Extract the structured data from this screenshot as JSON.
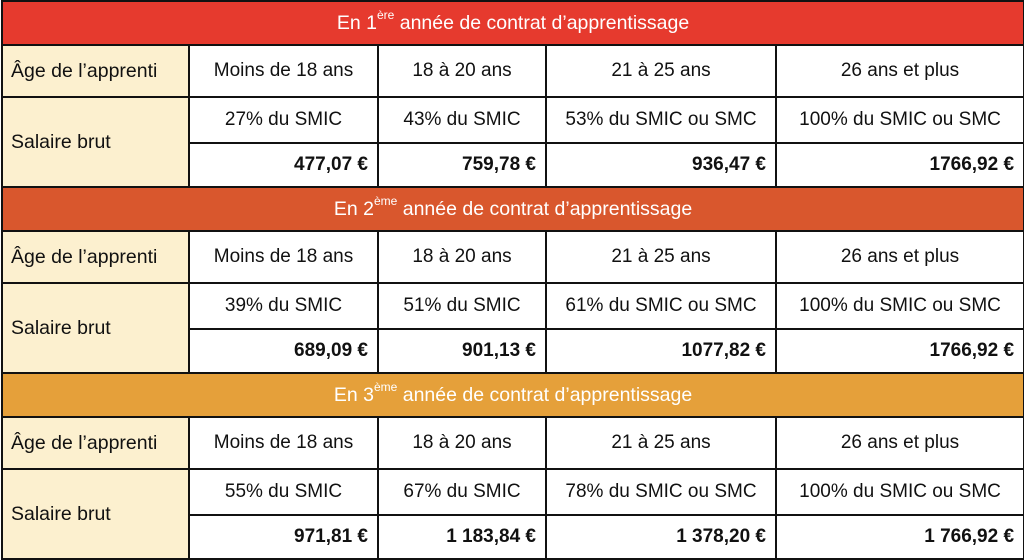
{
  "colors": {
    "year1_banner": "#e63a2e",
    "year2_banner": "#d9572d",
    "year3_banner": "#e5a03a",
    "header_cell": "#fcf0cf"
  },
  "labels": {
    "age": "Âge de l’apprenti",
    "salary": "Salaire brut"
  },
  "years": [
    {
      "prefix": "En 1",
      "superscript": "ère",
      "suffix": " année de contrat d’apprentissage",
      "ages": [
        "Moins de 18 ans",
        "18 à 20 ans",
        "21 à 25 ans",
        "26 ans et plus"
      ],
      "percents": [
        "27% du SMIC",
        "43% du SMIC",
        "53% du SMIC ou SMC",
        "100% du SMIC ou SMC"
      ],
      "amounts": [
        "477,07 €",
        "759,78 €",
        "936,47 €",
        "1766,92 €"
      ]
    },
    {
      "prefix": "En 2",
      "superscript": "ème",
      "suffix": " année de contrat d’apprentissage",
      "ages": [
        "Moins de 18 ans",
        "18 à 20 ans",
        "21 à 25 ans",
        "26 ans et plus"
      ],
      "percents": [
        "39% du SMIC",
        "51% du SMIC",
        "61% du SMIC ou SMC",
        "100% du SMIC ou SMC"
      ],
      "amounts": [
        "689,09 €",
        "901,13 €",
        "1077,82 €",
        "1766,92 €"
      ]
    },
    {
      "prefix": "En 3",
      "superscript": "ème",
      "suffix": " année de contrat d’apprentissage",
      "ages": [
        "Moins de 18 ans",
        "18 à 20 ans",
        "21 à 25 ans",
        "26 ans et plus"
      ],
      "percents": [
        "55% du SMIC",
        "67% du SMIC",
        "78% du SMIC ou SMC",
        "100% du SMIC ou SMC"
      ],
      "amounts": [
        "971,81 €",
        "1 183,84 €",
        "1 378,20 €",
        "1 766,92 €"
      ]
    }
  ]
}
